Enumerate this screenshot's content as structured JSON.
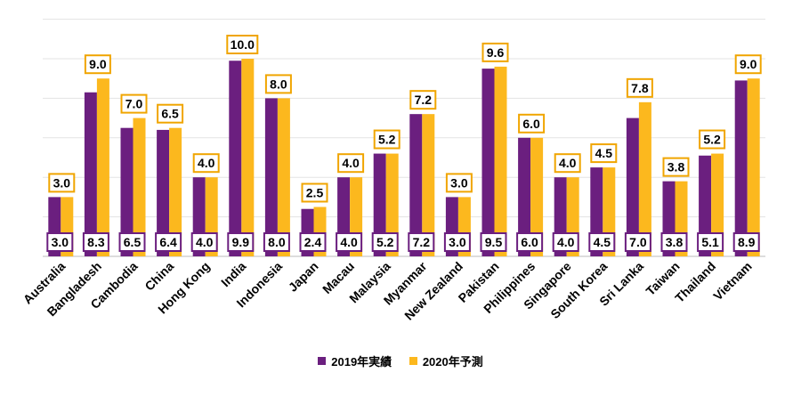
{
  "chart_data": {
    "type": "bar",
    "title": "",
    "xlabel": "",
    "ylabel": "",
    "ylim": [
      0,
      12
    ],
    "grid": true,
    "legend_position": "bottom-center",
    "categories": [
      "Australia",
      "Bangladesh",
      "Cambodia",
      "China",
      "Hong Kong",
      "India",
      "Indonesia",
      "Japan",
      "Macau",
      "Malaysia",
      "Myanmar",
      "New Zealand",
      "Pakistan",
      "Philippines",
      "Singapore",
      "South Korea",
      "Sri Lanka",
      "Taiwan",
      "Thailand",
      "Vietnam"
    ],
    "series": [
      {
        "name": "2019年実績",
        "color": "#6b1f7f",
        "label_border": "#6b1f7f",
        "values": [
          3.0,
          8.3,
          6.5,
          6.4,
          4.0,
          9.9,
          8.0,
          2.4,
          4.0,
          5.2,
          7.2,
          3.0,
          9.5,
          6.0,
          4.0,
          4.5,
          7.0,
          3.8,
          5.1,
          8.9
        ],
        "labels": [
          "3.0",
          "8.3",
          "6.5",
          "6.4",
          "4.0",
          "9.9",
          "8.0",
          "2.4",
          "4.0",
          "5.2",
          "7.2",
          "3.0",
          "9.5",
          "6.0",
          "4.0",
          "4.5",
          "7.0",
          "3.8",
          "5.1",
          "8.9"
        ]
      },
      {
        "name": "2020年予測",
        "color": "#fcb81e",
        "label_border": "#f0a500",
        "values": [
          3.0,
          9.0,
          7.0,
          6.5,
          4.0,
          10.0,
          8.0,
          2.5,
          4.0,
          5.2,
          7.2,
          3.0,
          9.6,
          6.0,
          4.0,
          4.5,
          7.8,
          3.8,
          5.2,
          9.0
        ],
        "labels": [
          "3.0",
          "9.0",
          "7.0",
          "6.5",
          "4.0",
          "10.0",
          "8.0",
          "2.5",
          "4.0",
          "5.2",
          "7.2",
          "3.0",
          "9.6",
          "6.0",
          "4.0",
          "4.5",
          "7.8",
          "3.8",
          "5.2",
          "9.0"
        ]
      }
    ]
  }
}
